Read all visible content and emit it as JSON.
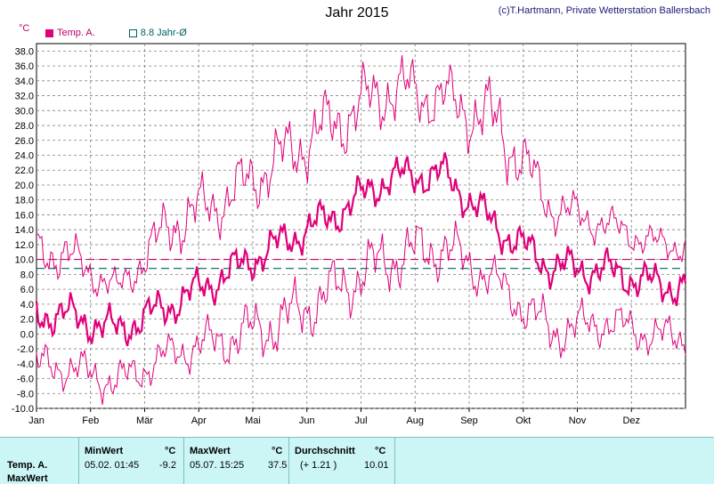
{
  "header": {
    "title": "Jahr 2015",
    "copyright": "(c)T.Hartmann, Private Wetterstation Ballersbach",
    "unit": "°C"
  },
  "legend": {
    "series_label": "Temp. A.",
    "avg_label": "8.8 Jahr-Ø"
  },
  "colors": {
    "temp": "#e0007a",
    "avg_line": "#006060",
    "mean_line": "#c0006a",
    "grid": "#808080",
    "stats_bg": "#ccf5f5"
  },
  "chart_data": {
    "type": "line",
    "title": "Jahr 2015",
    "ylabel": "°C",
    "ylim": [
      -10,
      39
    ],
    "y_ticks": [
      "38.0",
      "36.0",
      "34.0",
      "32.0",
      "30.0",
      "28.0",
      "26.0",
      "24.0",
      "22.0",
      "20.0",
      "18.0",
      "16.0",
      "14.0",
      "12.0",
      "10.0",
      "8.0",
      "6.0",
      "4.0",
      "2.0",
      "0.0",
      "-2.0",
      "-4.0",
      "-6.0",
      "-8.0",
      "-10.0"
    ],
    "categories": [
      "Jan",
      "Feb",
      "Mär",
      "Apr",
      "Mai",
      "Jun",
      "Jul",
      "Aug",
      "Sep",
      "Okt",
      "Nov",
      "Dez"
    ],
    "grid": true,
    "reference_lines": [
      {
        "name": "8.8 Jahr-Ø",
        "value": 8.8,
        "style": "dashed"
      },
      {
        "value": 10.01,
        "style": "dashed"
      }
    ],
    "series": [
      {
        "name": "Temp. A.",
        "monthly_mean": [
          2.6,
          0.5,
          4.0,
          8.0,
          12.2,
          16.0,
          21.0,
          21.5,
          14.2,
          9.0,
          8.5,
          6.5
        ],
        "monthly_max": [
          14.0,
          8.0,
          19.0,
          22.0,
          28.0,
          33.0,
          37.5,
          35.5,
          33.5,
          20.0,
          17.0,
          14.0
        ],
        "monthly_min": [
          -7.0,
          -9.2,
          -5.0,
          -4.0,
          -2.5,
          2.0,
          6.0,
          8.0,
          4.0,
          -3.0,
          -1.0,
          -3.0
        ]
      }
    ]
  },
  "stats": {
    "row_label": "Temp. A.",
    "row_label2": "MaxWert",
    "min_header": "MinWert",
    "min_unit": "°C",
    "min_date": "05.02.  01:45",
    "min_value": "-9.2",
    "max_header": "MaxWert",
    "max_unit": "°C",
    "max_date": "05.07.  15:25",
    "max_value": "37.5",
    "avg_header": "Durchschnitt",
    "avg_unit": "°C",
    "avg_delta": "(+ 1.21 )",
    "avg_value": "10.01"
  }
}
